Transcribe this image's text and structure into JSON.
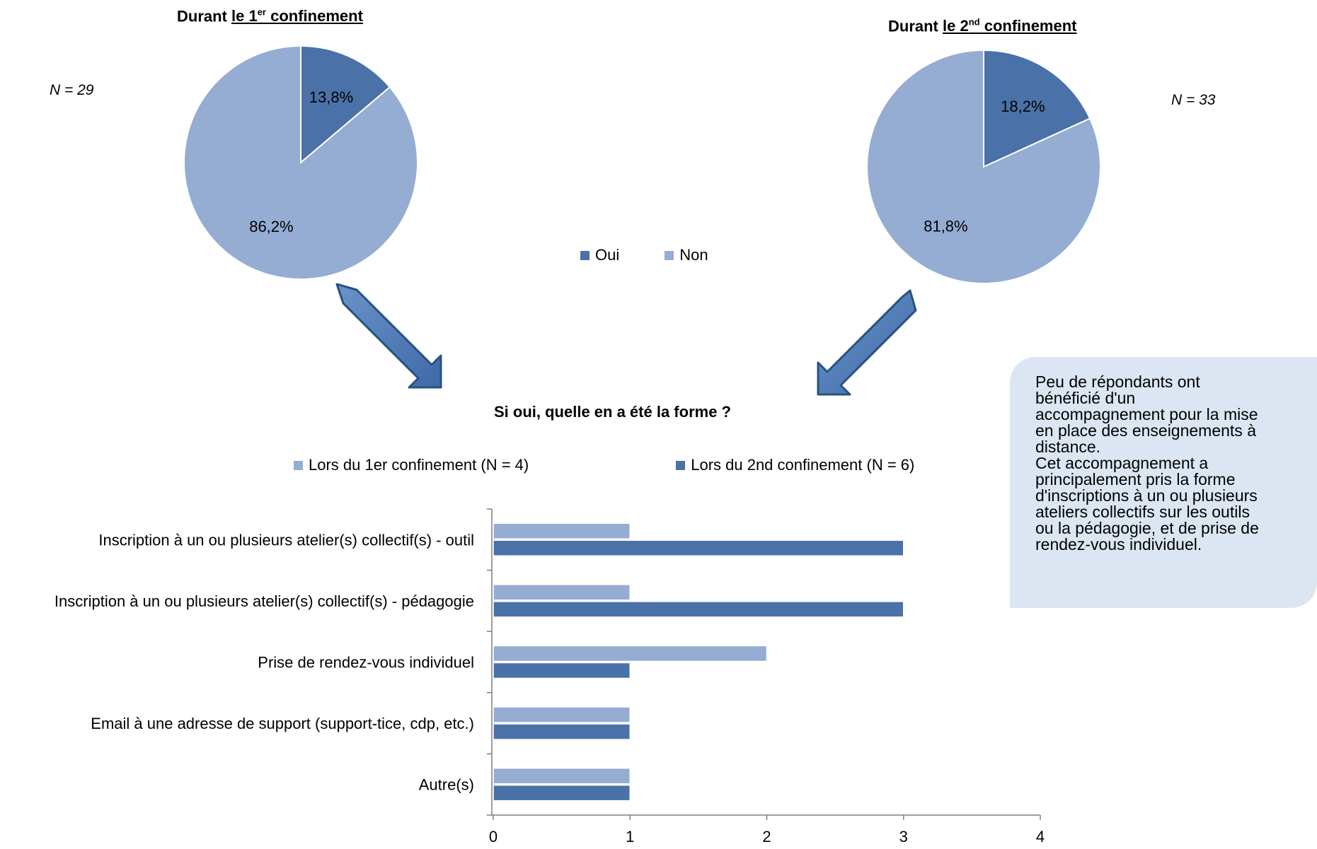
{
  "colors": {
    "oui": "#4a72a8",
    "non": "#95acd3",
    "series1": "#95acd3",
    "series2": "#4a72a8",
    "note_bg": "#dce6f2",
    "arrow": "#4f81bd"
  },
  "pie1": {
    "title_prefix": "Durant ",
    "title_le": "le 1",
    "title_sup": "er",
    "title_suffix": " confinement",
    "n_label": "N = 29"
  },
  "pie2": {
    "title_prefix": "Durant ",
    "title_le": "le 2",
    "title_sup": "nd",
    "title_suffix": " confinement",
    "n_label": "N = 33"
  },
  "legend_pie": {
    "oui": "Oui",
    "non": "Non"
  },
  "bar": {
    "title": "Si oui, quelle en a été la forme ?",
    "legend1": "Lors du 1er confinement (N = 4)",
    "legend2": "Lors du 2nd confinement (N = 6)"
  },
  "note": {
    "text": "Peu de répondants ont\nbénéficié d'un\naccompagnement pour la mise\nen place des enseignements à\ndistance.\nCet accompagnement a\nprincipalement pris la forme\nd'inscriptions à un ou plusieurs\nateliers collectifs sur les outils\nou la pédagogie, et de prise de\nrendez-vous individuel."
  },
  "chart_data": [
    {
      "type": "pie",
      "title": "Durant le 1er confinement",
      "n": "N = 29",
      "labels": [
        "Oui",
        "Non"
      ],
      "values": [
        13.8,
        86.2
      ],
      "data_labels": [
        "13,8%",
        "86,2%"
      ]
    },
    {
      "type": "pie",
      "title": "Durant le 2nd confinement",
      "n": "N = 33",
      "labels": [
        "Oui",
        "Non"
      ],
      "values": [
        18.2,
        81.8
      ],
      "data_labels": [
        "18,2%",
        "81,8%"
      ]
    },
    {
      "type": "bar",
      "orientation": "horizontal",
      "title": "Si oui, quelle en a été la forme ?",
      "categories": [
        "Inscription à un ou plusieurs atelier(s) collectif(s) - outil",
        "Inscription à un ou plusieurs atelier(s) collectif(s) - pédagogie",
        "Prise de rendez-vous individuel",
        "Email à une adresse de support (support-tice, cdp, etc.)",
        "Autre(s)"
      ],
      "series": [
        {
          "name": "Lors du 1er confinement (N = 4)",
          "values": [
            1,
            1,
            2,
            1,
            1
          ]
        },
        {
          "name": "Lors du 2nd confinement (N = 6)",
          "values": [
            3,
            3,
            1,
            1,
            1
          ]
        }
      ],
      "xlim": [
        0,
        4
      ],
      "xticks": [
        "0",
        "1",
        "2",
        "3",
        "4"
      ],
      "grid": false,
      "legend": "top"
    }
  ]
}
